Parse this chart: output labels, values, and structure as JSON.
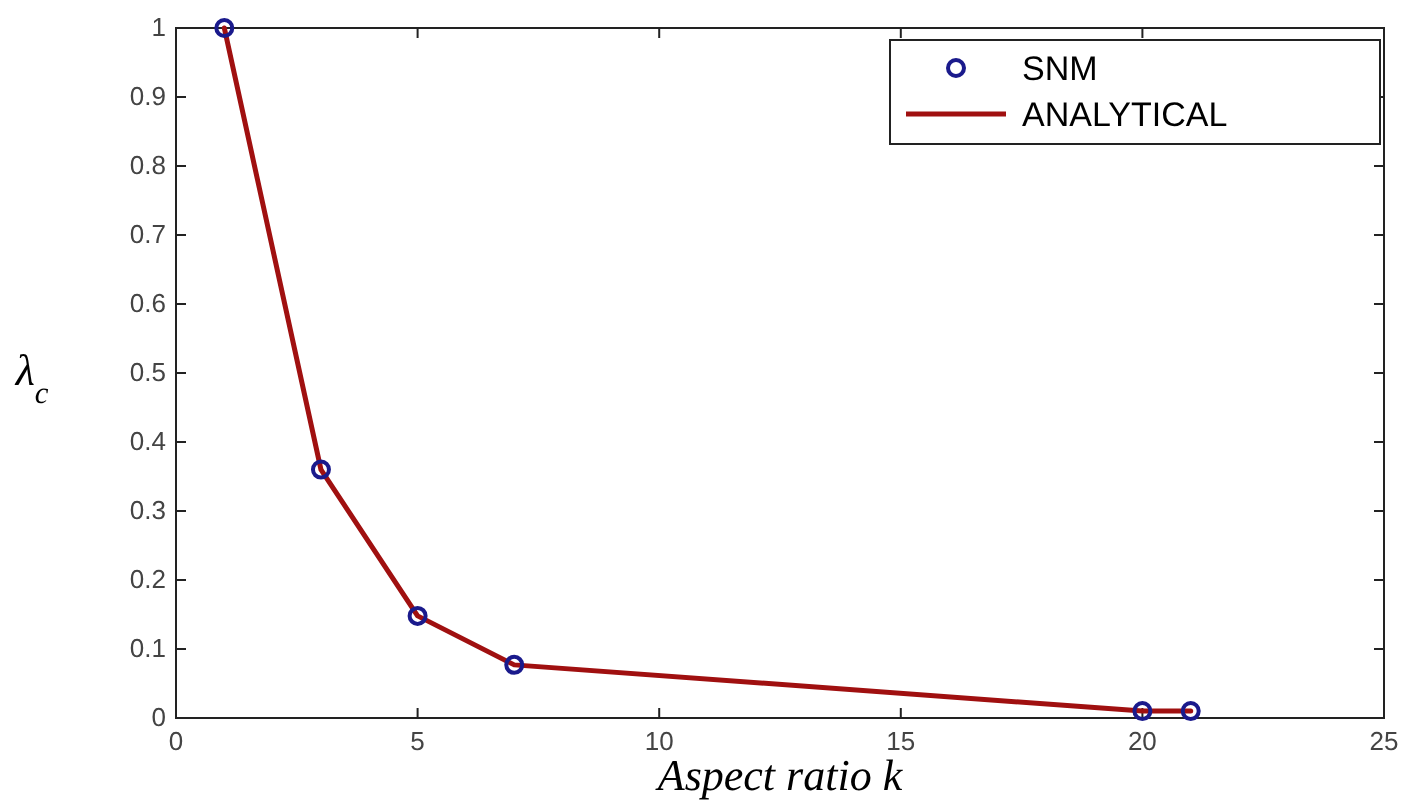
{
  "chart_data": {
    "type": "line",
    "xlabel": "Aspect ratio k",
    "ylabel": "λ$_{c}$",
    "xlim": [
      0,
      25
    ],
    "xticks": [
      0,
      5,
      10,
      15,
      20,
      25
    ],
    "ylim": [
      0,
      1
    ],
    "yticks": [
      0,
      0.1,
      0.2,
      0.3,
      0.4,
      0.5,
      0.6,
      0.7,
      0.8,
      0.9,
      1
    ],
    "grid": false,
    "legend": "top right",
    "series": [
      {
        "name": "SNM",
        "type": "scatter",
        "color": "#1a1a8c",
        "marker": "circle",
        "x": [
          1,
          3,
          5,
          7,
          20,
          21
        ],
        "values": [
          1.0,
          0.36,
          0.148,
          0.077,
          0.01,
          0.01
        ]
      },
      {
        "name": "ANALYTICAL",
        "color": "#a01010",
        "line_style": "solid",
        "x": [
          1,
          3,
          5,
          7,
          20,
          21
        ],
        "values": [
          1.0,
          0.36,
          0.148,
          0.077,
          0.01,
          0.01
        ]
      }
    ]
  }
}
